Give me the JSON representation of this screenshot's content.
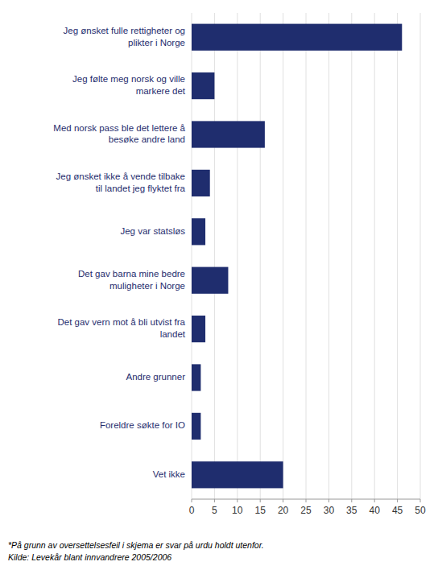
{
  "chart_data": {
    "type": "bar",
    "orientation": "horizontal",
    "categories": [
      "Jeg ønsket fulle rettigheter og\nplikter i Norge",
      "Jeg følte meg norsk og ville\nmarkere det",
      "Med norsk pass ble det lettere å\nbesøke andre land",
      "Jeg ønsket ikke å vende tilbake\ntil landet jeg flyktet fra",
      "Jeg var statsløs",
      "Det gav barna mine bedre\nmuligheter i Norge",
      "Det gav vern mot å bli utvist fra\nlandet",
      "Andre grunner",
      "Foreldre søkte for IO",
      "Vet ikke"
    ],
    "values": [
      46,
      5,
      16,
      4,
      3,
      8,
      3,
      2,
      2,
      20
    ],
    "color": "#1f2d6e",
    "xlim": [
      0,
      50
    ],
    "xticks": [
      0,
      5,
      10,
      15,
      20,
      25,
      30,
      35,
      40,
      45,
      50
    ],
    "grid": true,
    "annotations": [
      "*På grunn av oversettelsesfeil i skjema er svar på urdu holdt utenfor.",
      "Kilde: Levekår blant innvandrere 2005/2006"
    ]
  }
}
